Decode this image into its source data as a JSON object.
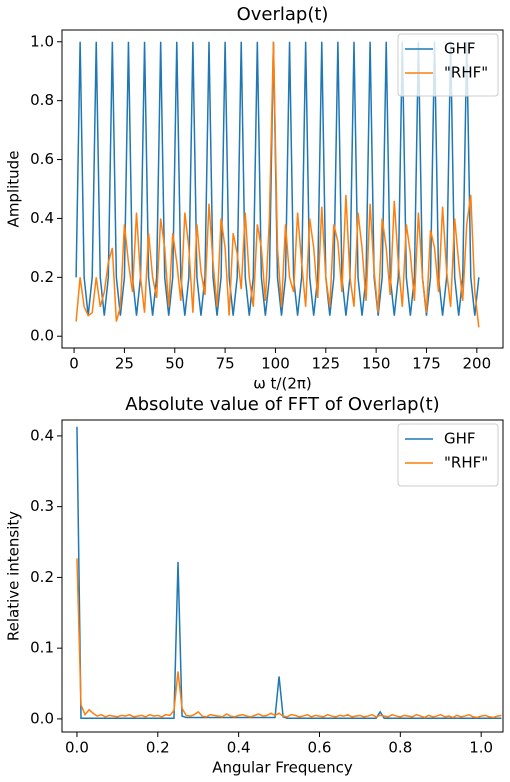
{
  "chart_data": [
    {
      "type": "line",
      "title": "Overlap(t)",
      "x_label": "ω t/(2π)",
      "y_label": "Amplitude",
      "xlim": [
        -6,
        213
      ],
      "ylim": [
        -0.04,
        1.04
      ],
      "xticks": [
        0,
        25,
        50,
        75,
        100,
        125,
        150,
        175,
        200
      ],
      "yticks": [
        {
          "value": 0,
          "label": "0.0"
        },
        0.2,
        0.4,
        0.6,
        0.8,
        {
          "value": 1,
          "label": "1.0"
        }
      ],
      "legend": "upper right",
      "x": [
        1,
        3,
        5,
        7,
        9,
        11,
        13,
        15,
        17,
        19,
        21,
        23,
        25,
        27,
        29,
        31,
        33,
        35,
        37,
        39,
        41,
        43,
        45,
        47,
        49,
        51,
        53,
        55,
        57,
        59,
        61,
        63,
        65,
        67,
        69,
        71,
        73,
        75,
        77,
        79,
        81,
        83,
        85,
        87,
        89,
        91,
        93,
        95,
        97,
        99,
        101,
        103,
        105,
        107,
        109,
        111,
        113,
        115,
        117,
        119,
        121,
        123,
        125,
        127,
        129,
        131,
        133,
        135,
        137,
        139,
        141,
        143,
        145,
        147,
        149,
        151,
        153,
        155,
        157,
        159,
        161,
        163,
        165,
        167,
        169,
        171,
        173,
        175,
        177,
        179,
        181,
        183,
        185,
        187,
        189,
        191,
        193,
        195,
        197,
        199,
        201
      ],
      "series": [
        {
          "name": "GHF",
          "color": "#1f77b4",
          "values": [
            0.2,
            1.0,
            0.2,
            0.07,
            0.2,
            1.0,
            0.2,
            0.07,
            0.2,
            1.0,
            0.2,
            0.07,
            0.2,
            1.0,
            0.2,
            0.07,
            0.2,
            1.0,
            0.2,
            0.07,
            0.2,
            1.0,
            0.2,
            0.07,
            0.2,
            1.0,
            0.2,
            0.07,
            0.2,
            1.0,
            0.2,
            0.07,
            0.2,
            1.0,
            0.2,
            0.07,
            0.2,
            1.0,
            0.2,
            0.07,
            0.2,
            1.0,
            0.2,
            0.07,
            0.2,
            1.0,
            0.2,
            0.07,
            0.2,
            1.0,
            0.2,
            0.07,
            0.2,
            1.0,
            0.2,
            0.07,
            0.2,
            1.0,
            0.2,
            0.07,
            0.2,
            1.0,
            0.2,
            0.07,
            0.2,
            1.0,
            0.2,
            0.07,
            0.2,
            1.0,
            0.2,
            0.07,
            0.2,
            1.0,
            0.2,
            0.07,
            0.2,
            1.0,
            0.2,
            0.07,
            0.2,
            1.0,
            0.2,
            0.07,
            0.2,
            1.0,
            0.2,
            0.07,
            0.2,
            1.0,
            0.2,
            0.07,
            0.2,
            1.0,
            0.2,
            0.07,
            0.2,
            1.0,
            0.2,
            0.07,
            0.2
          ]
        },
        {
          "name": "\"RHF\"",
          "color": "#ff7f0e",
          "values": [
            0.05,
            0.2,
            0.1,
            0.07,
            0.08,
            0.2,
            0.1,
            0.15,
            0.25,
            0.3,
            0.05,
            0.1,
            0.38,
            0.25,
            0.15,
            0.42,
            0.2,
            0.08,
            0.35,
            0.2,
            0.13,
            0.4,
            0.3,
            0.1,
            0.35,
            0.25,
            0.12,
            0.42,
            0.3,
            0.08,
            0.38,
            0.22,
            0.14,
            0.45,
            0.25,
            0.1,
            0.4,
            0.3,
            0.07,
            0.35,
            0.28,
            0.16,
            0.42,
            0.2,
            0.1,
            0.38,
            0.3,
            0.12,
            0.4,
            1.0,
            0.3,
            0.1,
            0.38,
            0.2,
            0.15,
            0.42,
            0.25,
            0.1,
            0.4,
            0.3,
            0.13,
            0.44,
            0.2,
            0.1,
            0.38,
            0.32,
            0.15,
            0.48,
            0.2,
            0.1,
            0.42,
            0.3,
            0.12,
            0.45,
            0.22,
            0.08,
            0.4,
            0.3,
            0.14,
            0.46,
            0.25,
            0.1,
            0.38,
            0.28,
            0.12,
            0.42,
            0.2,
            0.08,
            0.36,
            0.3,
            0.15,
            0.44,
            0.22,
            0.1,
            0.4,
            0.25,
            0.12,
            0.38,
            0.48,
            0.15,
            0.03
          ]
        }
      ]
    },
    {
      "type": "line",
      "title": "Absolute value of FFT of Overlap(t)",
      "x_label": "Angular Frequency",
      "y_label": "Relative intensity",
      "xlim": [
        -0.037,
        1.054
      ],
      "ylim": [
        -0.0185,
        0.4225
      ],
      "xticks": [
        {
          "value": 0,
          "label": "0.0"
        },
        0.2,
        0.4,
        0.6,
        0.8,
        {
          "value": 1,
          "label": "1.0"
        }
      ],
      "yticks": [
        {
          "value": 0,
          "label": "0.0"
        },
        0.1,
        0.2,
        0.3,
        0.4
      ],
      "legend": "upper right",
      "x": [
        0,
        0.01,
        0.02,
        0.03,
        0.04,
        0.05,
        0.06,
        0.07,
        0.08,
        0.09,
        0.1,
        0.11,
        0.12,
        0.13,
        0.14,
        0.15,
        0.16,
        0.17,
        0.18,
        0.19,
        0.2,
        0.21,
        0.22,
        0.23,
        0.24,
        0.25,
        0.26,
        0.27,
        0.28,
        0.29,
        0.3,
        0.31,
        0.32,
        0.33,
        0.34,
        0.35,
        0.36,
        0.37,
        0.38,
        0.39,
        0.4,
        0.41,
        0.42,
        0.43,
        0.44,
        0.45,
        0.46,
        0.47,
        0.48,
        0.49,
        0.5,
        0.51,
        0.52,
        0.53,
        0.54,
        0.55,
        0.56,
        0.57,
        0.58,
        0.59,
        0.6,
        0.61,
        0.62,
        0.63,
        0.64,
        0.65,
        0.66,
        0.67,
        0.68,
        0.69,
        0.7,
        0.71,
        0.72,
        0.73,
        0.74,
        0.75,
        0.76,
        0.77,
        0.78,
        0.79,
        0.8,
        0.81,
        0.82,
        0.83,
        0.84,
        0.85,
        0.86,
        0.87,
        0.88,
        0.89,
        0.9,
        0.91,
        0.92,
        0.93,
        0.94,
        0.95,
        0.96,
        0.97,
        0.98,
        0.99,
        1.0,
        1.01,
        1.02,
        1.03,
        1.04,
        1.05
      ],
      "series": [
        {
          "name": "GHF",
          "color": "#1f77b4",
          "values": [
            0.413,
            0.001,
            0.001,
            0.001,
            0.001,
            0.001,
            0.001,
            0.001,
            0.001,
            0.001,
            0.001,
            0.001,
            0.001,
            0.001,
            0.001,
            0.001,
            0.001,
            0.001,
            0.001,
            0.001,
            0.001,
            0.001,
            0.001,
            0.001,
            0.001,
            0.222,
            0.004,
            0.002,
            0.002,
            0.002,
            0.002,
            0.002,
            0.002,
            0.002,
            0.002,
            0.002,
            0.002,
            0.002,
            0.002,
            0.002,
            0.002,
            0.002,
            0.002,
            0.002,
            0.002,
            0.002,
            0.002,
            0.002,
            0.002,
            0.002,
            0.06,
            0.003,
            0.001,
            0.001,
            0.001,
            0.001,
            0.001,
            0.001,
            0.001,
            0.001,
            0.001,
            0.001,
            0.001,
            0.001,
            0.001,
            0.001,
            0.001,
            0.001,
            0.001,
            0.001,
            0.001,
            0.001,
            0.001,
            0.001,
            0.001,
            0.01,
            0.001,
            0.001,
            0.001,
            0.001,
            0.001,
            0.001,
            0.001,
            0.001,
            0.001,
            0.001,
            0.001,
            0.001,
            0.001,
            0.001,
            0.001,
            0.001,
            0.001,
            0.001,
            0.001,
            0.001,
            0.001,
            0.001,
            0.001,
            0.001,
            0.001,
            0.001,
            0.001,
            0.001,
            0.001,
            0.001
          ]
        },
        {
          "name": "\"RHF\"",
          "color": "#ff7f0e",
          "values": [
            0.227,
            0.02,
            0.006,
            0.013,
            0.008,
            0.004,
            0.006,
            0.003,
            0.005,
            0.004,
            0.003,
            0.005,
            0.004,
            0.006,
            0.003,
            0.004,
            0.005,
            0.003,
            0.006,
            0.004,
            0.005,
            0.003,
            0.006,
            0.005,
            0.012,
            0.067,
            0.015,
            0.005,
            0.004,
            0.006,
            0.01,
            0.004,
            0.003,
            0.006,
            0.005,
            0.004,
            0.003,
            0.007,
            0.004,
            0.003,
            0.005,
            0.006,
            0.004,
            0.003,
            0.005,
            0.007,
            0.004,
            0.005,
            0.008,
            0.005,
            0.008,
            0.004,
            0.003,
            0.006,
            0.005,
            0.003,
            0.004,
            0.006,
            0.003,
            0.005,
            0.004,
            0.003,
            0.006,
            0.004,
            0.003,
            0.005,
            0.004,
            0.006,
            0.003,
            0.004,
            0.005,
            0.003,
            0.004,
            0.006,
            0.003,
            0.005,
            0.004,
            0.003,
            0.006,
            0.004,
            0.003,
            0.005,
            0.004,
            0.003,
            0.006,
            0.004,
            0.002,
            0.005,
            0.003,
            0.004,
            0.006,
            0.003,
            0.004,
            0.002,
            0.005,
            0.003,
            0.004,
            0.006,
            0.003,
            0.002,
            0.004,
            0.005,
            0.003,
            0.002,
            0.004,
            0.005
          ]
        }
      ]
    }
  ]
}
